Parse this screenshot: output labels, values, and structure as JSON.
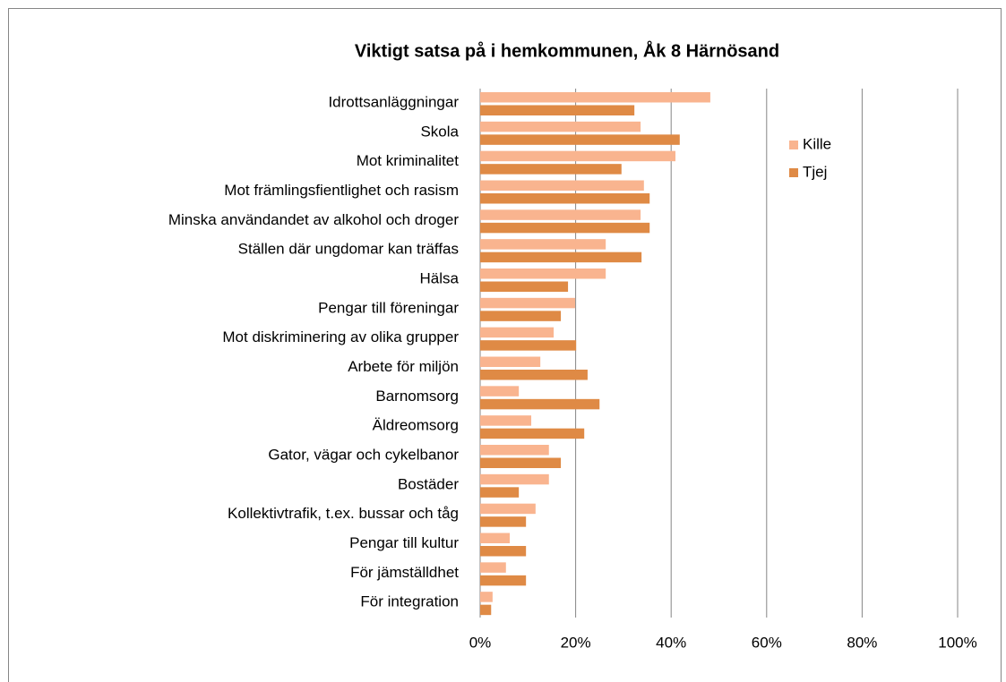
{
  "chart_data": {
    "type": "barh",
    "title": "Viktigt satsa på i hemkommunen, Åk 8 Härnösand",
    "categories": [
      "Idrottsanläggningar",
      "Skola",
      "Mot kriminalitet",
      "Mot främlingsfientlighet och rasism",
      "Minska användandet av alkohol och droger",
      "Ställen där ungdomar kan träffas",
      "Hälsa",
      "Pengar till föreningar",
      "Mot diskriminering av olika grupper",
      "Arbete för miljön",
      "Barnomsorg",
      "Äldreomsorg",
      "Gator, vägar och cykelbanor",
      "Bostäder",
      "Kollektivtrafik, t.ex. bussar och tåg",
      "Pengar till kultur",
      "För jämställdhet",
      "För integration"
    ],
    "series": [
      {
        "name": "Kille",
        "color": "#f9b48f",
        "values": [
          48.2,
          33.6,
          40.9,
          34.3,
          33.6,
          26.3,
          26.3,
          19.9,
          15.4,
          12.6,
          8.1,
          10.7,
          14.4,
          14.4,
          11.6,
          6.2,
          5.4,
          2.6
        ]
      },
      {
        "name": "Tjej",
        "color": "#df8a45",
        "values": [
          32.3,
          41.8,
          29.6,
          35.5,
          35.5,
          33.8,
          18.4,
          16.9,
          20.1,
          22.5,
          25.0,
          21.8,
          16.9,
          8.1,
          9.6,
          9.6,
          9.6,
          2.3
        ]
      }
    ],
    "xlim": [
      0,
      100
    ],
    "xticks": [
      {
        "value": 0,
        "label": "0%"
      },
      {
        "value": 20,
        "label": "20%"
      },
      {
        "value": 40,
        "label": "40%"
      },
      {
        "value": 60,
        "label": "60%"
      },
      {
        "value": 80,
        "label": "80%"
      },
      {
        "value": 100,
        "label": "100%"
      }
    ],
    "grid": true,
    "legend": "right"
  }
}
